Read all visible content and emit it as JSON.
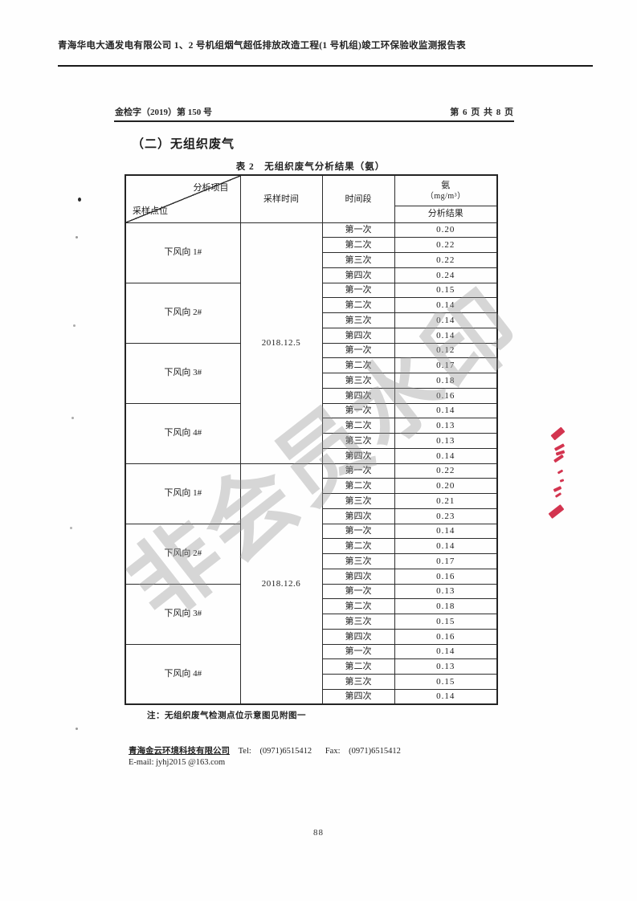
{
  "header": {
    "title": "青海华电大通发电有限公司 1、2 号机组烟气超低排放改造工程(1 号机组)竣工环保验收监测报告表",
    "doc_number": "金检字（2019）第 150 号",
    "page_indicator": "第 6 页 共 8 页"
  },
  "section": {
    "heading": "（二）无组织废气"
  },
  "table": {
    "caption": "表 2　无组织废气分析结果（氨）",
    "header": {
      "corner_top": "分析项目",
      "corner_bottom": "采样点位",
      "col_time": "采样时间",
      "col_period": "时间段",
      "col_result_top": "氨",
      "col_result_unit": "（mg/m³）",
      "col_result_bottom": "分析结果"
    },
    "periods": [
      "第一次",
      "第二次",
      "第三次",
      "第四次"
    ],
    "groups": [
      {
        "date": "2018.12.5",
        "locations": [
          {
            "name": "下风向 1#",
            "values": [
              "0.20",
              "0.22",
              "0.22",
              "0.24"
            ]
          },
          {
            "name": "下风向 2#",
            "values": [
              "0.15",
              "0.14",
              "0.14",
              "0.14"
            ]
          },
          {
            "name": "下风向 3#",
            "values": [
              "0.12",
              "0.17",
              "0.18",
              "0.16"
            ]
          },
          {
            "name": "下风向 4#",
            "values": [
              "0.14",
              "0.13",
              "0.13",
              "0.14"
            ]
          }
        ]
      },
      {
        "date": "2018.12.6",
        "locations": [
          {
            "name": "下风向 1#",
            "values": [
              "0.22",
              "0.20",
              "0.21",
              "0.23"
            ]
          },
          {
            "name": "下风向 2#",
            "values": [
              "0.14",
              "0.14",
              "0.17",
              "0.16"
            ]
          },
          {
            "name": "下风向 3#",
            "values": [
              "0.13",
              "0.18",
              "0.15",
              "0.16"
            ]
          },
          {
            "name": "下风向 4#",
            "values": [
              "0.14",
              "0.13",
              "0.15",
              "0.14"
            ]
          }
        ]
      }
    ]
  },
  "note": "注：无组织废气检测点位示意图见附图一",
  "footer": {
    "company": "青海金云环境科技有限公司",
    "tel_label": "Tel:",
    "tel": "(0971)6515412",
    "fax_label": "Fax:",
    "fax": "(0971)6515412",
    "email_label": "E-mail:",
    "email": "jyhj2015 @163.com"
  },
  "page_number": "88",
  "watermark": "非会员水印",
  "colors": {
    "seal_red": "#cf2340",
    "table_border": "#2c2c2c"
  }
}
